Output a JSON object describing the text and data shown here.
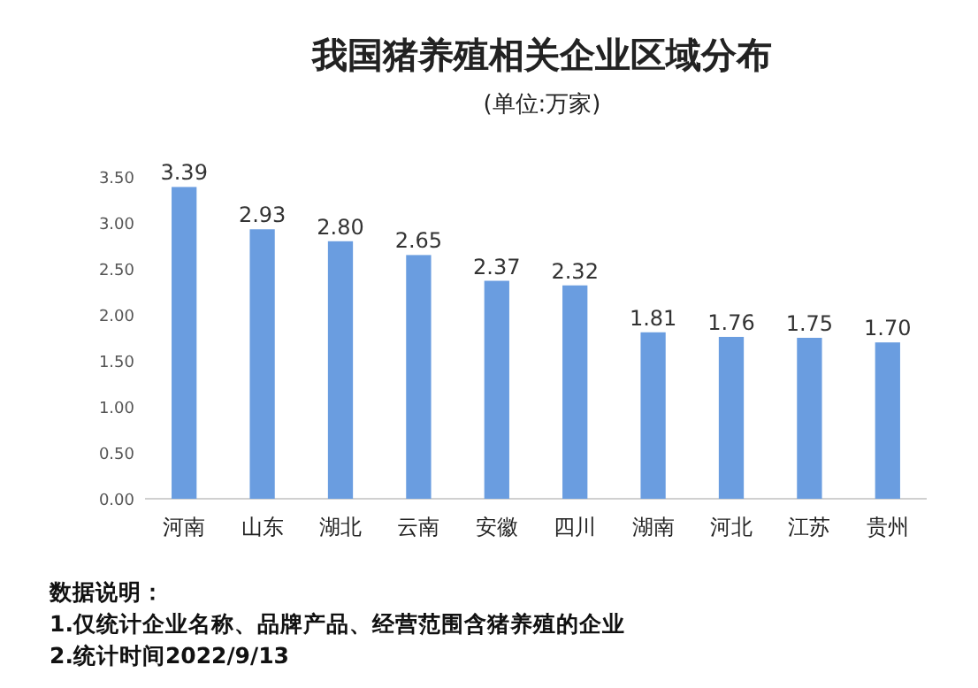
{
  "chart_data": {
    "type": "bar",
    "title": "我国猪养殖相关企业区域分布",
    "subtitle": "(单位:万家)",
    "categories": [
      "河南",
      "山东",
      "湖北",
      "云南",
      "安徽",
      "四川",
      "湖南",
      "河北",
      "江苏",
      "贵州"
    ],
    "values": [
      3.39,
      2.93,
      2.8,
      2.65,
      2.37,
      2.32,
      1.81,
      1.76,
      1.75,
      1.7
    ],
    "value_labels": [
      "3.39",
      "2.93",
      "2.80",
      "2.65",
      "2.37",
      "2.32",
      "1.81",
      "1.76",
      "1.75",
      "1.70"
    ],
    "color": "#6a9de0",
    "ylim": [
      0,
      3.5
    ],
    "yticks": [
      {
        "value": 0,
        "label": "0.00"
      },
      {
        "value": 0.5,
        "label": "0.50"
      },
      {
        "value": 1,
        "label": "1.00"
      },
      {
        "value": 1.5,
        "label": "1.50"
      },
      {
        "value": 2,
        "label": "2.00"
      },
      {
        "value": 2.5,
        "label": "2.50"
      },
      {
        "value": 3,
        "label": "3.00"
      },
      {
        "value": 3.5,
        "label": "3.50"
      }
    ],
    "grid": false,
    "annotations": [
      "数据说明：",
      "1.仅统计企业名称、品牌产品、经营范围含猪养殖的企业",
      "2.统计时间2022/9/13"
    ]
  }
}
